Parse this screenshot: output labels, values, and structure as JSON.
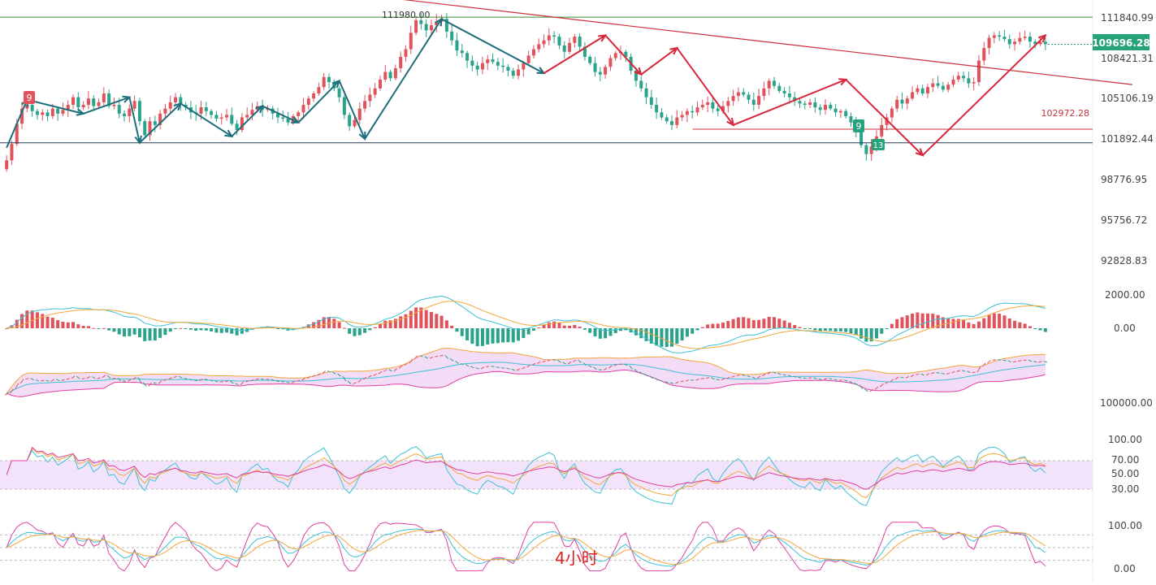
{
  "colors": {
    "up": "#e0535b",
    "down": "#2aa38a",
    "trend_dark": "#1d6e7a",
    "trend_red": "#d8263a",
    "resistance_line": "#3a8d3a",
    "support_line": "#1f3b58",
    "channel_line": "#c9303a",
    "badge": "#26a37a",
    "axis_text": "#444444",
    "rsi_band": "#f2e3fa",
    "rsi_line_1": "#e040a0",
    "rsi_line_2": "#f3a63a",
    "rsi_line_3": "#3cc1d6"
  },
  "main_axis": {
    "ticks": [
      "111840.99",
      "108421.31",
      "105106.19",
      "101892.44",
      "98776.95",
      "95756.72",
      "92828.83"
    ],
    "tick_values": [
      111840.99,
      108421.31,
      105106.19,
      101892.44,
      98776.95,
      95756.72,
      92828.83
    ],
    "current_price_label": "109696.28",
    "current_price": 109696.28
  },
  "annotations": {
    "high_label": "111980.00",
    "level_label": "102972.28",
    "tag_nine_red": "9",
    "tag_nine_green": "9",
    "tag_thirteen": "13",
    "timeframe": "4小时"
  },
  "macd_axis": {
    "ticks": [
      "2000.00",
      "0.00"
    ]
  },
  "bb_axis": {
    "ticks": [
      "100000.00"
    ]
  },
  "rsi_axis": {
    "ticks": [
      "100.00",
      "70.00",
      "50.00",
      "30.00"
    ]
  },
  "kdj_axis": {
    "ticks": [
      "100.00",
      "0.00"
    ]
  },
  "chart_data": {
    "type": "candlestick",
    "timeframe": "4小时",
    "y_range": [
      91000,
      113200
    ],
    "horizontal_levels": [
      111840.99,
      102972.28,
      101892.44
    ],
    "swing_points_dark": [
      [
        0,
        101500
      ],
      [
        4,
        105300
      ],
      [
        15,
        104200
      ],
      [
        24,
        105500
      ],
      [
        26,
        101900
      ],
      [
        34,
        105000
      ],
      [
        44,
        102400
      ],
      [
        50,
        104800
      ],
      [
        57,
        103500
      ],
      [
        65,
        106800
      ],
      [
        70,
        102200
      ],
      [
        85,
        111700
      ],
      [
        105,
        107400
      ]
    ],
    "swing_points_red": [
      [
        105,
        107400
      ],
      [
        117,
        110400
      ],
      [
        124,
        107300
      ],
      [
        131,
        109400
      ],
      [
        142,
        103300
      ],
      [
        164,
        106900
      ],
      [
        179,
        100900
      ],
      [
        203,
        110400
      ]
    ],
    "channel_line": [
      [
        55,
        114300
      ],
      [
        220,
        106500
      ]
    ],
    "closes": [
      100500,
      101800,
      103400,
      104600,
      104900,
      104400,
      104100,
      104300,
      104000,
      104600,
      104200,
      104500,
      104900,
      105500,
      104700,
      104900,
      105400,
      104800,
      105100,
      105800,
      104800,
      104900,
      104200,
      104000,
      104600,
      105200,
      103600,
      102500,
      103600,
      103300,
      104200,
      104600,
      105100,
      105500,
      104900,
      104700,
      104300,
      104200,
      104700,
      104400,
      104100,
      103800,
      103900,
      104100,
      103400,
      102900,
      103900,
      104100,
      104500,
      104800,
      104500,
      104600,
      104200,
      103900,
      103800,
      103500,
      104000,
      104300,
      104900,
      105400,
      105800,
      106300,
      107100,
      106700,
      106200,
      105500,
      104100,
      103200,
      103700,
      104600,
      105200,
      105700,
      106200,
      106900,
      107500,
      107000,
      107800,
      108700,
      109300,
      110600,
      111600,
      111300,
      110800,
      111200,
      111500,
      111700,
      110700,
      110000,
      109200,
      109000,
      108400,
      108000,
      107700,
      108200,
      108500,
      108300,
      108000,
      107900,
      107600,
      107200,
      107700,
      108200,
      108800,
      109300,
      109700,
      110000,
      110400,
      110300,
      109600,
      109100,
      109800,
      110300,
      109500,
      108700,
      108200,
      107500,
      107300,
      107900,
      108600,
      109000,
      109100,
      108700,
      107600,
      106800,
      106200,
      105500,
      104900,
      104300,
      103900,
      103600,
      103300,
      103900,
      104100,
      104400,
      104300,
      104700,
      104900,
      105100,
      104600,
      104400,
      104800,
      105200,
      105600,
      105900,
      105700,
      105300,
      104900,
      105600,
      106200,
      106800,
      106400,
      106000,
      105800,
      105500,
      105200,
      105000,
      104900,
      105100,
      104700,
      104500,
      104900,
      104600,
      104300,
      104400,
      104000,
      103500,
      102900,
      101700,
      101000,
      101600,
      102400,
      103300,
      103900,
      104600,
      105300,
      105000,
      105400,
      105900,
      106200,
      105800,
      106300,
      106600,
      106400,
      106100,
      106500,
      106900,
      107200,
      107000,
      106600,
      106700,
      108400,
      109400,
      110200,
      110400,
      110300,
      110100,
      109700,
      109900,
      110200,
      110300,
      109900,
      109700,
      109900,
      109700
    ]
  }
}
